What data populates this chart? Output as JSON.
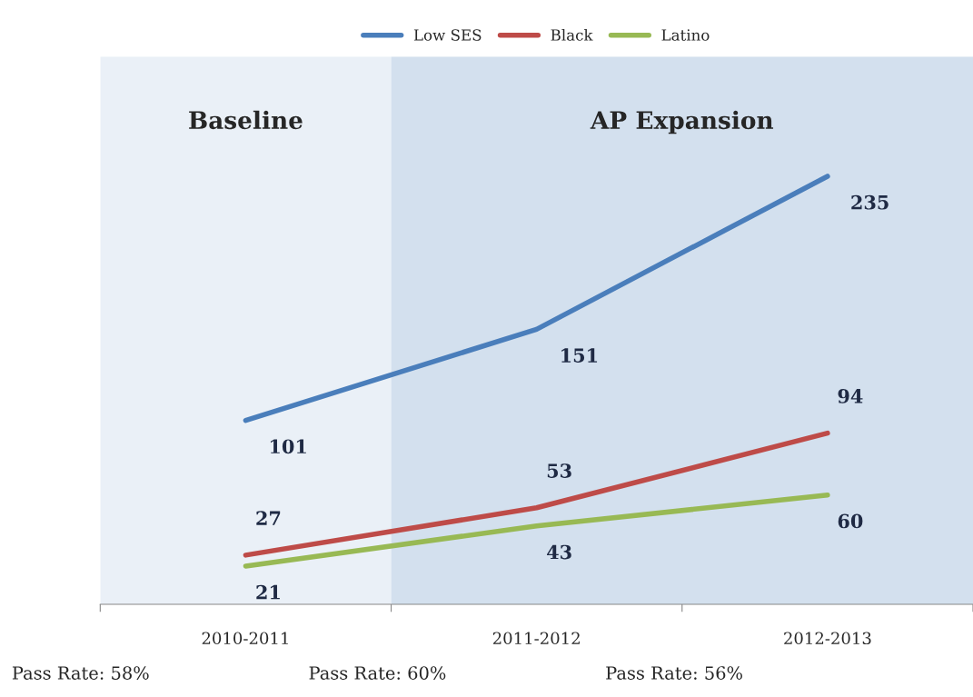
{
  "chart_data": {
    "type": "line",
    "categories": [
      "2010-2011",
      "2011-2012",
      "2012-2013"
    ],
    "series": [
      {
        "name": "Low SES",
        "color": "#4a7ebb",
        "values": [
          101,
          151,
          235
        ]
      },
      {
        "name": "Black",
        "color": "#be4b48",
        "values": [
          27,
          53,
          94
        ]
      },
      {
        "name": "Latino",
        "color": "#98b954",
        "values": [
          21,
          43,
          60
        ]
      }
    ],
    "data_labels": true,
    "legend": "top",
    "grid": false,
    "marker": "none",
    "line_style": "solid",
    "bands": [
      {
        "axis": "x",
        "from": "2010-2011",
        "to": "2010-2011",
        "label": "Baseline",
        "color": "#eaf0f7"
      },
      {
        "axis": "x",
        "from": "2011-2012",
        "to": "2012-2013",
        "label": "AP Expansion",
        "color": "#d3e0ee"
      }
    ],
    "annotations": [
      "Pass Rate: 58%",
      "Pass Rate: 60%",
      "Pass Rate: 56%"
    ]
  }
}
